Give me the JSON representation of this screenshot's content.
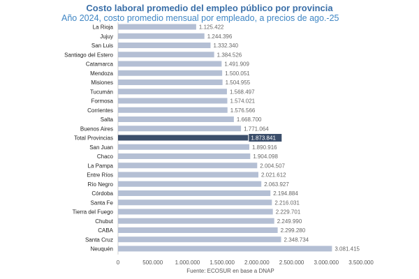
{
  "chart_data": {
    "type": "bar",
    "orientation": "horizontal",
    "title": "Costo laboral promedio del empleo público por provincia",
    "subtitle": "Año 2024, costo promedio mensual por empleado, a precios de ago.-25",
    "source": "Fuente: ECOSUR en base a DNAP",
    "categories": [
      "La Rioja",
      "Jujuy",
      "San Luis",
      "Santiago del Estero",
      "Catamarca",
      "Mendoza",
      "Misiones",
      "Tucumán",
      "Formosa",
      "Corrientes",
      "Salta",
      "Buenos Aires",
      "Total Provincias",
      "San Juan",
      "Chaco",
      "La Pampa",
      "Entre Ríos",
      "Río Negro",
      "Córdoba",
      "Santa Fe",
      "Tierra del Fuego",
      "Chubut",
      "CABA",
      "Santa Cruz",
      "Neuquén"
    ],
    "values": [
      1125422,
      1244396,
      1332340,
      1384526,
      1491909,
      1500051,
      1504955,
      1568497,
      1574021,
      1576566,
      1668700,
      1771064,
      1873841,
      1890916,
      1904098,
      2004507,
      2021612,
      2063927,
      2194884,
      2216031,
      2229701,
      2249990,
      2299280,
      2348734,
      3081415
    ],
    "value_labels": [
      "1.125.422",
      "1.244.396",
      "1.332.340",
      "1.384.526",
      "1.491.909",
      "1.500.051",
      "1.504.955",
      "1.568.497",
      "1.574.021",
      "1.576.566",
      "1.668.700",
      "1.771.064",
      "1.873.841",
      "1.890.916",
      "1.904.098",
      "2.004.507",
      "2.021.612",
      "2.063.927",
      "2.194.884",
      "2.216.031",
      "2.229.701",
      "2.249.990",
      "2.299.280",
      "2.348.734",
      "3.081.415"
    ],
    "highlight": "Total Provincias",
    "xlim": [
      0,
      3500000
    ],
    "x_ticks": [
      0,
      500000,
      1000000,
      1500000,
      2000000,
      2500000,
      3000000,
      3500000
    ],
    "x_tick_labels": [
      "0",
      "500.000",
      "1.000.000",
      "1.500.000",
      "2.000.000",
      "2.500.000",
      "3.000.000",
      "3.500.000"
    ],
    "colors": {
      "bar": "#b4bfd4",
      "highlight": "#3b4e6b",
      "value": "#666666",
      "highlight_value": "#ffffff"
    },
    "grid": false,
    "legend": "none"
  }
}
